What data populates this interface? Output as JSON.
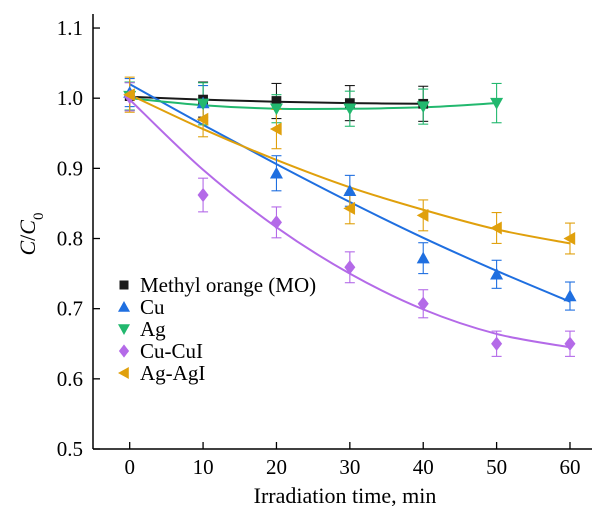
{
  "chart_data": {
    "type": "scatter",
    "title": "",
    "xlabel": "Irradiation time, min",
    "ylabel_main": "C",
    "ylabel_slash": "/",
    "ylabel_var": "C",
    "ylabel_sub": "0",
    "xlim": [
      -5,
      63
    ],
    "ylim": [
      0.5,
      1.12
    ],
    "xticks": [
      0,
      10,
      20,
      30,
      40,
      50,
      60
    ],
    "yticks": [
      0.5,
      0.6,
      0.7,
      0.8,
      0.9,
      1.0,
      1.1
    ],
    "ytick_labels": [
      "0.5",
      "0.6",
      "0.7",
      "0.8",
      "0.9",
      "1.0",
      "1.1"
    ],
    "grid": false,
    "legend_position": "bottom-left",
    "series": [
      {
        "name": "Methyl orange (MO)",
        "marker": "square",
        "color": "#1a1a1a",
        "x": [
          0,
          10,
          20,
          30,
          40
        ],
        "y": [
          1.003,
          0.998,
          0.996,
          0.993,
          0.992
        ],
        "err": [
          0.02,
          0.025,
          0.025,
          0.025,
          0.025
        ],
        "fit": [
          [
            0,
            1.002
          ],
          [
            10,
            0.998
          ],
          [
            20,
            0.995
          ],
          [
            30,
            0.993
          ],
          [
            40,
            0.992
          ]
        ]
      },
      {
        "name": "Cu",
        "marker": "triangle-up",
        "color": "#1f6fe0",
        "x": [
          0,
          10,
          20,
          30,
          40,
          50,
          60
        ],
        "y": [
          1.008,
          0.993,
          0.893,
          0.868,
          0.772,
          0.749,
          0.718
        ],
        "err": [
          0.02,
          0.025,
          0.025,
          0.022,
          0.022,
          0.02,
          0.02
        ],
        "fit": [
          [
            0,
            1.02
          ],
          [
            10,
            0.962
          ],
          [
            20,
            0.906
          ],
          [
            30,
            0.852
          ],
          [
            40,
            0.801
          ],
          [
            50,
            0.754
          ],
          [
            60,
            0.71
          ]
        ]
      },
      {
        "name": "Ag",
        "marker": "triangle-down",
        "color": "#22b86e",
        "x": [
          0,
          10,
          20,
          30,
          40,
          50
        ],
        "y": [
          1.003,
          0.992,
          0.985,
          0.985,
          0.988,
          0.993
        ],
        "err": [
          0.02,
          0.03,
          0.02,
          0.025,
          0.025,
          0.028
        ],
        "fit": [
          [
            0,
            1.0
          ],
          [
            10,
            0.99
          ],
          [
            20,
            0.985
          ],
          [
            30,
            0.985
          ],
          [
            40,
            0.987
          ],
          [
            50,
            0.993
          ]
        ]
      },
      {
        "name": "Cu-CuI",
        "marker": "diamond",
        "color": "#b46ae8",
        "x": [
          0,
          10,
          20,
          30,
          40,
          50,
          60
        ],
        "y": [
          1.002,
          0.862,
          0.823,
          0.759,
          0.707,
          0.65,
          0.65
        ],
        "err": [
          0.02,
          0.024,
          0.022,
          0.022,
          0.02,
          0.018,
          0.018
        ],
        "fit": [
          [
            0,
            0.998
          ],
          [
            10,
            0.898
          ],
          [
            20,
            0.816
          ],
          [
            30,
            0.75
          ],
          [
            40,
            0.699
          ],
          [
            50,
            0.664
          ],
          [
            60,
            0.645
          ]
        ]
      },
      {
        "name": "Ag-AgI",
        "marker": "triangle-left",
        "color": "#e0a00c",
        "x": [
          0,
          10,
          20,
          30,
          40,
          50,
          60
        ],
        "y": [
          1.005,
          0.97,
          0.956,
          0.843,
          0.833,
          0.815,
          0.8
        ],
        "err": [
          0.025,
          0.025,
          0.028,
          0.022,
          0.022,
          0.022,
          0.022
        ],
        "fit": [
          [
            0,
            1.005
          ],
          [
            10,
            0.956
          ],
          [
            20,
            0.912
          ],
          [
            30,
            0.873
          ],
          [
            40,
            0.841
          ],
          [
            50,
            0.813
          ],
          [
            60,
            0.793
          ]
        ]
      }
    ]
  }
}
